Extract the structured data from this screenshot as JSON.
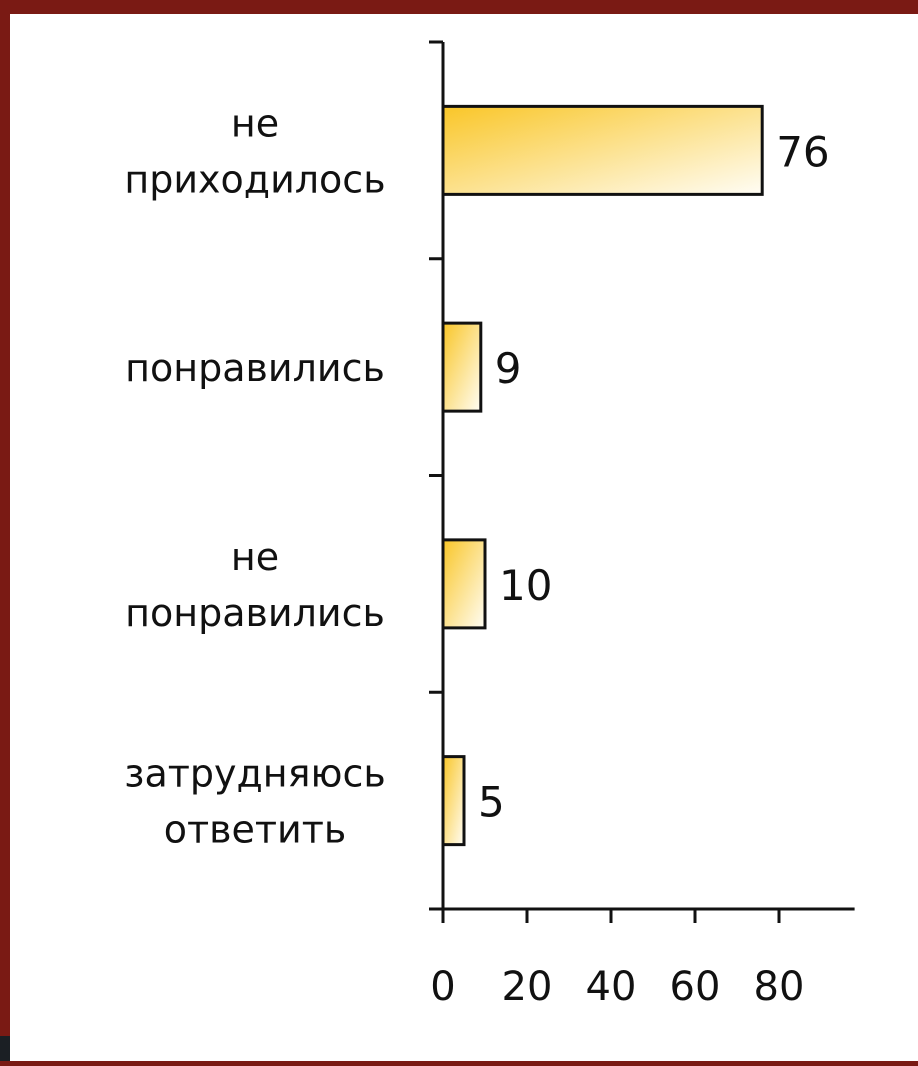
{
  "chart_data": {
    "type": "bar",
    "orientation": "horizontal",
    "categories": [
      [
        "не",
        "приходилось"
      ],
      [
        "понравились"
      ],
      [
        "не",
        "понравились"
      ],
      [
        "затрудняюсь",
        "ответить"
      ]
    ],
    "values": [
      76,
      9,
      10,
      5
    ],
    "x_ticks": [
      "0",
      "20",
      "40",
      "60",
      "80"
    ],
    "xlim": [
      0,
      98
    ],
    "grid": false,
    "legend": false,
    "bar_gradient": [
      "#f9c628",
      "#fffdf5"
    ],
    "bar_stroke": "#111111"
  }
}
